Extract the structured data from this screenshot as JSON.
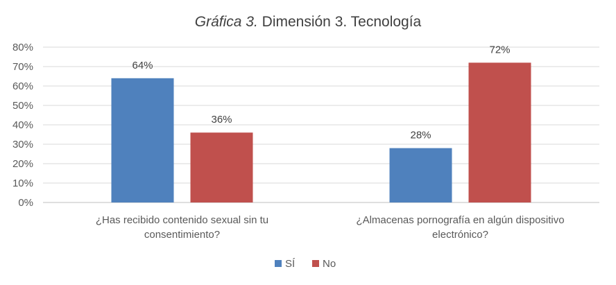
{
  "chart_data": {
    "type": "bar",
    "title": {
      "italic": "Gráfica 3.",
      "rest": " Dimensión 3. Tecnología"
    },
    "categories": [
      [
        "¿Has recibido contenido sexual sin tu",
        "consentimiento?"
      ],
      [
        "¿Almacenas pornografía en algún dispositivo",
        "electrónico?"
      ]
    ],
    "series": [
      {
        "name": "SÍ",
        "color": "#4F81BD",
        "values": [
          64,
          28
        ],
        "labels": [
          "64%",
          "28%"
        ]
      },
      {
        "name": "No",
        "color": "#C0504D",
        "values": [
          36,
          72
        ],
        "labels": [
          "36%",
          "72%"
        ]
      }
    ],
    "ylim": [
      0,
      80
    ],
    "yticks": [
      "0%",
      "10%",
      "20%",
      "30%",
      "40%",
      "50%",
      "60%",
      "70%",
      "80%"
    ],
    "grid": true,
    "legend_position": "bottom",
    "xlabel": "",
    "ylabel": ""
  }
}
